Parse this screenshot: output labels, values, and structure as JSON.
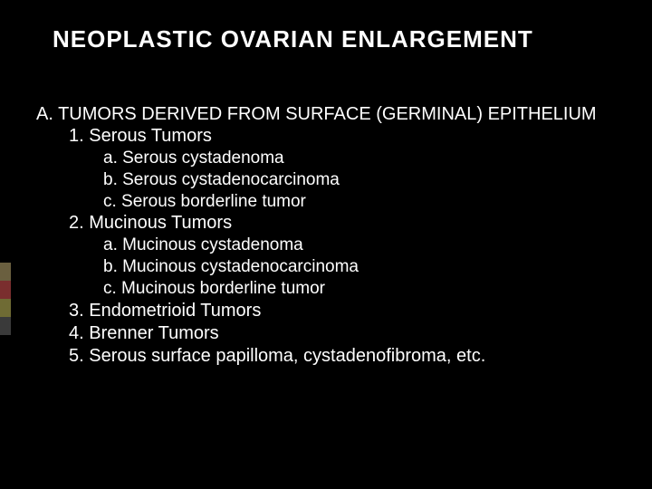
{
  "title": "NEOPLASTIC  OVARIAN  ENLARGEMENT",
  "title_fontsize": 26,
  "title_color": "#ffffff",
  "background_color": "#000000",
  "text_color": "#ffffff",
  "body_fontsize": 20,
  "sub_fontsize": 19,
  "section": {
    "label": "A. TUMORS DERIVED FROM SURFACE (GERMINAL) EPITHELIUM",
    "items": [
      {
        "num": "1.",
        "label": "Serous Tumors",
        "sub": [
          "a. Serous cystadenoma",
          "b. Serous cystadenocarcinoma",
          "c. Serous borderline tumor"
        ]
      },
      {
        "num": "2.",
        "label": "Mucinous Tumors",
        "sub": [
          "a. Mucinous cystadenoma",
          "b. Mucinous cystadenocarcinoma",
          "c. Mucinous  borderline tumor"
        ]
      },
      {
        "num": "3.",
        "label": "Endometrioid Tumors",
        "sub": []
      },
      {
        "num": "4.",
        "label": "Brenner Tumors",
        "sub": []
      },
      {
        "num": "5.",
        "label": "Serous surface papilloma, cystadenofibroma, etc.",
        "sub": []
      }
    ]
  },
  "accent_colors": [
    "#6a5f3f",
    "#7a2e2e",
    "#6f6b34",
    "#3a3a3a"
  ]
}
